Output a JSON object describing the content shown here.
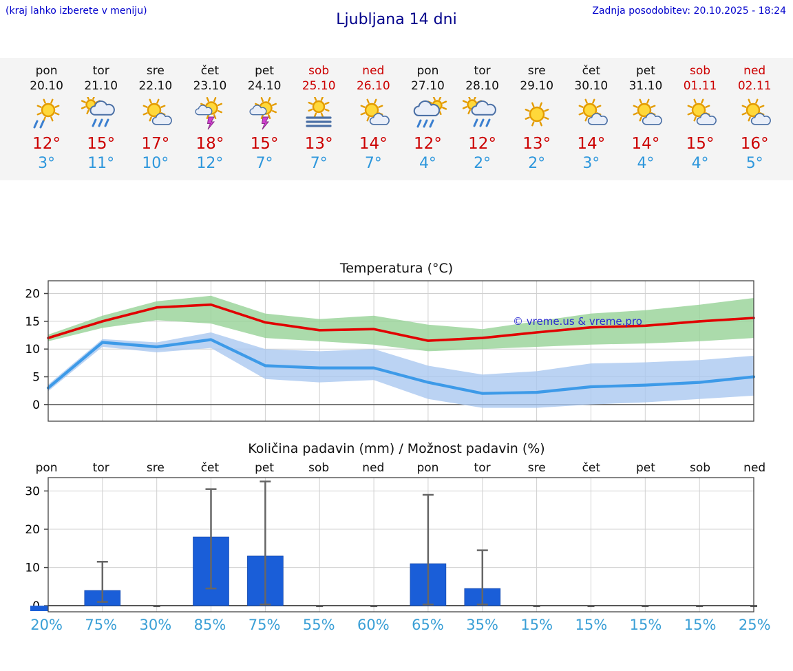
{
  "header": {
    "menu_hint": "(kraj lahko izberete v meniju)",
    "title": "Ljubljana 14 dni",
    "last_update": "Zadnja posodobitev: 20.10.2025 - 18:24"
  },
  "colors": {
    "link_blue": "#0000cc",
    "title_blue": "#00008b",
    "max_red": "#cc0000",
    "min_blue": "#2e97dc",
    "weekend_red": "#cc0000",
    "bar_blue": "#1a5ed8",
    "prob_blue": "#3a9fd6",
    "band_green": "#93d193",
    "band_blue": "#a8c6f0"
  },
  "forecast": {
    "days": [
      {
        "name": "pon",
        "date": "20.10",
        "weekend": false,
        "icon": "sun-rain",
        "max": "12°",
        "min": "3°"
      },
      {
        "name": "tor",
        "date": "21.10",
        "weekend": false,
        "icon": "cloud-rain-sun",
        "max": "15°",
        "min": "11°"
      },
      {
        "name": "sre",
        "date": "22.10",
        "weekend": false,
        "icon": "sun-cloud",
        "max": "17°",
        "min": "10°"
      },
      {
        "name": "čet",
        "date": "23.10",
        "weekend": false,
        "icon": "sun-storm",
        "max": "18°",
        "min": "12°"
      },
      {
        "name": "pet",
        "date": "24.10",
        "weekend": false,
        "icon": "sun-storm",
        "max": "15°",
        "min": "7°"
      },
      {
        "name": "sob",
        "date": "25.10",
        "weekend": true,
        "icon": "sun-fog",
        "max": "13°",
        "min": "7°"
      },
      {
        "name": "ned",
        "date": "26.10",
        "weekend": true,
        "icon": "sun-cloud",
        "max": "14°",
        "min": "7°"
      },
      {
        "name": "pon",
        "date": "27.10",
        "weekend": false,
        "icon": "cloud-rain",
        "max": "12°",
        "min": "4°"
      },
      {
        "name": "tor",
        "date": "28.10",
        "weekend": false,
        "icon": "cloud-rain-sun",
        "max": "12°",
        "min": "2°"
      },
      {
        "name": "sre",
        "date": "29.10",
        "weekend": false,
        "icon": "sun",
        "max": "13°",
        "min": "2°"
      },
      {
        "name": "čet",
        "date": "30.10",
        "weekend": false,
        "icon": "sun-cloud",
        "max": "14°",
        "min": "3°"
      },
      {
        "name": "pet",
        "date": "31.10",
        "weekend": false,
        "icon": "sun-cloud",
        "max": "14°",
        "min": "4°"
      },
      {
        "name": "sob",
        "date": "01.11",
        "weekend": true,
        "icon": "sun-cloud",
        "max": "15°",
        "min": "4°"
      },
      {
        "name": "ned",
        "date": "02.11",
        "weekend": true,
        "icon": "sun-cloud",
        "max": "16°",
        "min": "5°"
      }
    ]
  },
  "chart_data": [
    {
      "type": "line",
      "title": "Temperatura (°C)",
      "x": [
        "pon",
        "tor",
        "sre",
        "čet",
        "pet",
        "sob",
        "ned",
        "pon",
        "tor",
        "sre",
        "čet",
        "pet",
        "sob",
        "ned"
      ],
      "ylim": [
        -3,
        22.3
      ],
      "yticks": [
        0,
        5,
        10,
        15,
        20
      ],
      "grid": true,
      "legend": "none",
      "watermark": "© vreme.us & vreme.pro",
      "series": [
        {
          "name": "max temperature",
          "color": "#e10000",
          "values": [
            12,
            15,
            17.5,
            18,
            14.8,
            13.4,
            13.6,
            11.5,
            12,
            13,
            13.9,
            14.2,
            15,
            15.6
          ]
        },
        {
          "name": "min temperature",
          "color": "#3d9ae8",
          "values": [
            3,
            11.2,
            10.4,
            11.7,
            7,
            6.6,
            6.6,
            4,
            2,
            2.2,
            3.2,
            3.5,
            4,
            5
          ]
        }
      ],
      "bands": [
        {
          "name": "max temp range",
          "color": "#93d193",
          "upper": [
            12.6,
            16,
            18.6,
            19.6,
            16.4,
            15.4,
            16,
            14.4,
            13.6,
            15,
            16.4,
            17,
            18,
            19.2
          ],
          "lower": [
            11.4,
            13.8,
            15.2,
            14.6,
            12,
            11.4,
            10.8,
            9.6,
            10,
            10.4,
            10.8,
            11,
            11.4,
            12
          ]
        },
        {
          "name": "min temp range",
          "color": "#a8c6f0",
          "upper": [
            3.6,
            11.8,
            11.2,
            13,
            10,
            9.6,
            10,
            7,
            5.4,
            6,
            7.4,
            7.6,
            8,
            8.8
          ],
          "lower": [
            2.4,
            10.4,
            9.4,
            10.2,
            4.6,
            4,
            4.4,
            1,
            -0.6,
            -0.6,
            0,
            0.4,
            1,
            1.6
          ]
        }
      ]
    },
    {
      "type": "bar",
      "title": "Količina padavin (mm) / Možnost padavin (%)",
      "x": [
        "pon",
        "tor",
        "sre",
        "čet",
        "pet",
        "sob",
        "ned",
        "pon",
        "tor",
        "sre",
        "čet",
        "pet",
        "sob",
        "ned"
      ],
      "ylim": [
        -1.6,
        33.5
      ],
      "yticks": [
        0,
        10,
        20,
        30
      ],
      "grid": true,
      "bar_color": "#1a5ed8",
      "values": [
        0.3,
        4,
        0,
        18,
        13,
        0,
        0,
        11,
        4.5,
        0,
        0,
        0,
        0,
        0
      ],
      "whisker_low": [
        null,
        1,
        null,
        4.5,
        0.3,
        null,
        null,
        0.3,
        0.3,
        null,
        null,
        null,
        null,
        null
      ],
      "whisker_high": [
        null,
        11.5,
        null,
        30.5,
        32.5,
        null,
        null,
        29,
        14.5,
        null,
        null,
        null,
        null,
        null
      ],
      "probabilities": [
        "20%",
        "75%",
        "30%",
        "85%",
        "75%",
        "55%",
        "60%",
        "65%",
        "35%",
        "15%",
        "15%",
        "15%",
        "15%",
        "25%"
      ]
    }
  ]
}
